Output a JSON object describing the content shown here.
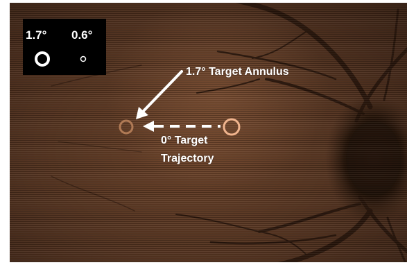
{
  "scale_legend": {
    "large_label": "1.7°",
    "small_label": "0.6°"
  },
  "annotations": {
    "annulus_label": "1.7° Target Annulus",
    "trajectory_label_line1": "0° Target",
    "trajectory_label_line2": "Trajectory"
  },
  "colors": {
    "target_annulus": "#b07a55",
    "start_ring": "#f0b48e",
    "annotation_text": "#ffffff",
    "legend_background": "#000000"
  }
}
